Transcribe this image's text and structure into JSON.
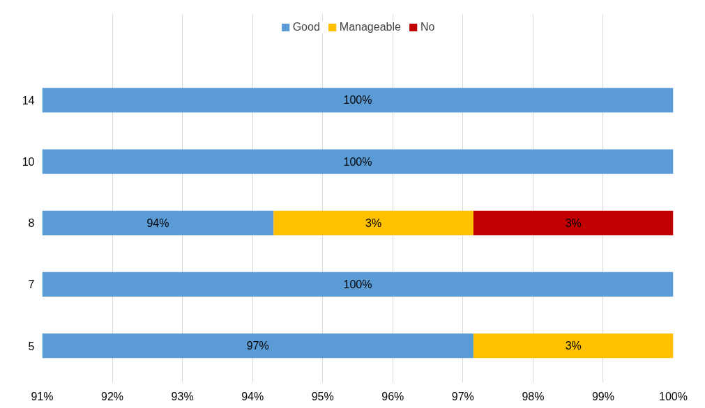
{
  "chart_data": {
    "type": "bar",
    "orientation": "horizontal",
    "stacked": true,
    "categories": [
      "14",
      "10",
      "8",
      "7",
      "5"
    ],
    "series": [
      {
        "name": "Good",
        "color": "#5b9bd5",
        "values": [
          100,
          100,
          94.3,
          100,
          97.15
        ],
        "value_labels": [
          "100%",
          "100%",
          "94%",
          "100%",
          "97%"
        ]
      },
      {
        "name": "Manageable",
        "color": "#ffc000",
        "values": [
          null,
          null,
          2.85,
          null,
          2.85
        ],
        "base": [
          null,
          null,
          94.3,
          null,
          97.15
        ],
        "value_labels": [
          null,
          null,
          "3%",
          null,
          "3%"
        ]
      },
      {
        "name": "No",
        "color": "#c00000",
        "values": [
          null,
          null,
          2.85,
          null,
          null
        ],
        "base": [
          null,
          null,
          97.15,
          null,
          null
        ],
        "value_labels": [
          null,
          null,
          "3%",
          null,
          null
        ]
      }
    ],
    "xlim": [
      91,
      100
    ],
    "xticks": [
      {
        "value": 91,
        "label": "91%"
      },
      {
        "value": 92,
        "label": "92%"
      },
      {
        "value": 93,
        "label": "93%"
      },
      {
        "value": 94,
        "label": "94%"
      },
      {
        "value": 95,
        "label": "95%"
      },
      {
        "value": 96,
        "label": "96%"
      },
      {
        "value": 97,
        "label": "97%"
      },
      {
        "value": 98,
        "label": "98%"
      },
      {
        "value": 99,
        "label": "99%"
      },
      {
        "value": 100,
        "label": "100%"
      }
    ],
    "grid": "x",
    "legend": "top"
  }
}
